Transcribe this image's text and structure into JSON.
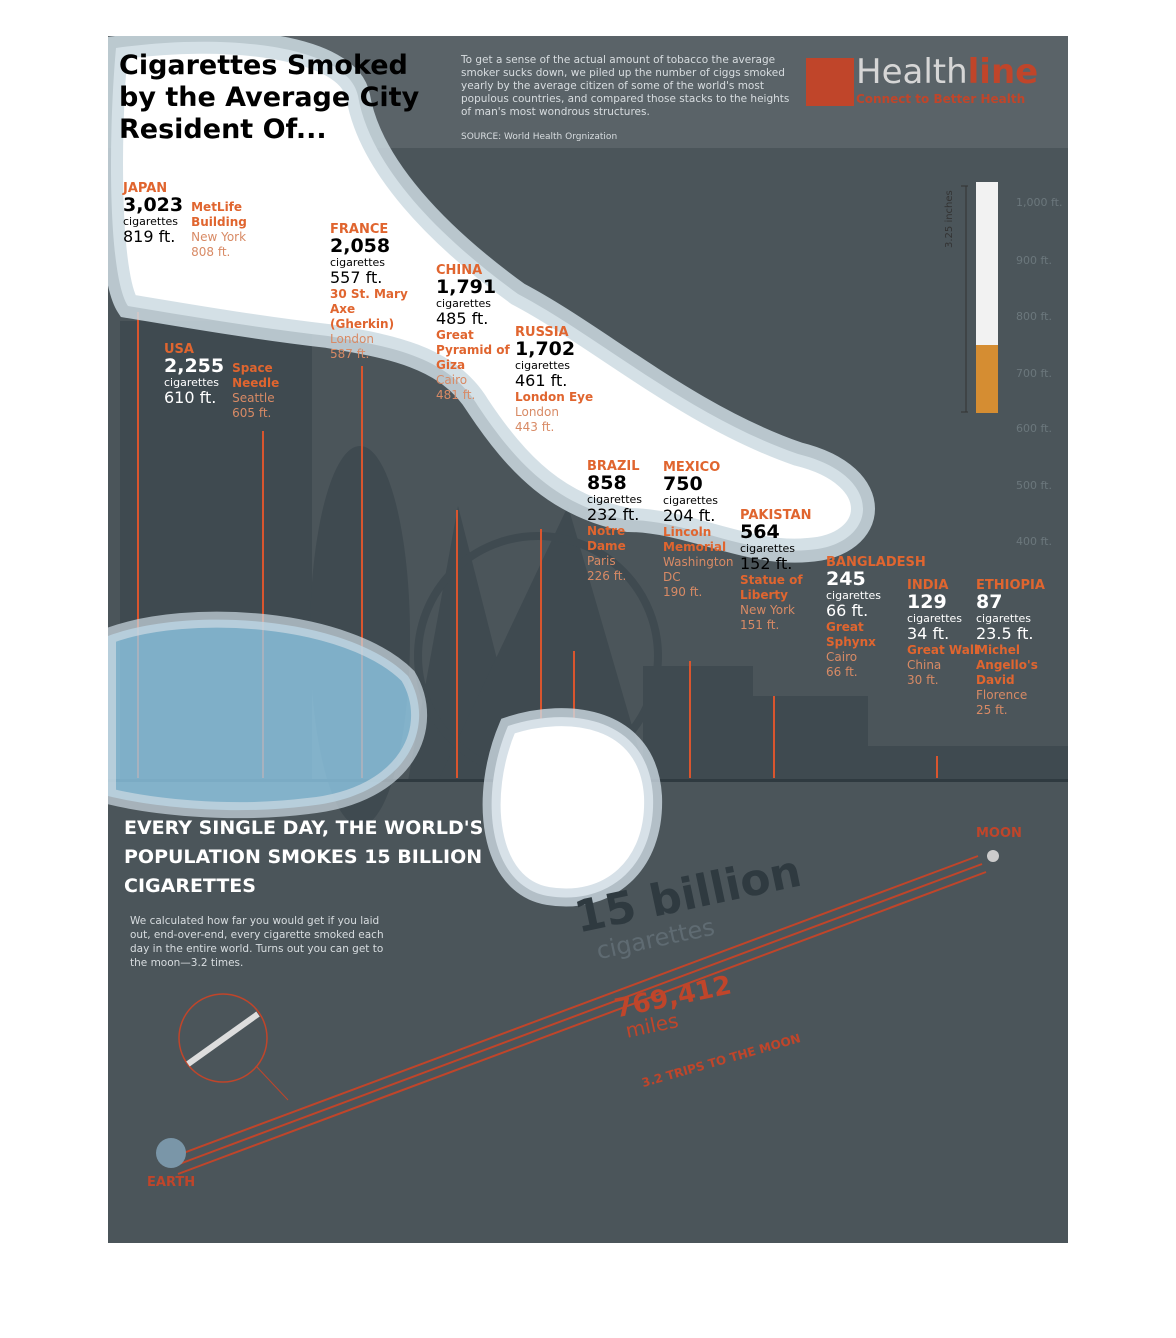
{
  "header": {
    "title": "Cigarettes Smoked by the Average City Resident Of...",
    "description": "To get a sense of the actual amount of tobacco the average smoker sucks down, we piled up the number of ciggs smoked yearly by the average citizen of some of the world's most populous countries, and compared those stacks to the heights of man's most wondrous structures.",
    "source": "SOURCE: World Health Orgnization",
    "logo": {
      "part1": "Health",
      "part2": "line",
      "tagline": "Connect to Better Health"
    }
  },
  "unit": "cigarettes",
  "countries": [
    {
      "country": "JAPAN",
      "cigarettes": "3,023",
      "height": "819 ft.",
      "landmark": "MetLife Building",
      "location": "New York",
      "landmark_height": "808 ft."
    },
    {
      "country": "FRANCE",
      "cigarettes": "2,058",
      "height": "557 ft.",
      "landmark": "30 St. Mary Axe (Gherkin)",
      "location": "London",
      "landmark_height": "587 ft."
    },
    {
      "country": "CHINA",
      "cigarettes": "1,791",
      "height": "485 ft.",
      "landmark": "Great Pyramid of Giza",
      "location": "Cairo",
      "landmark_height": "481 ft."
    },
    {
      "country": "RUSSIA",
      "cigarettes": "1,702",
      "height": "461 ft.",
      "landmark": "London Eye",
      "location": "London",
      "landmark_height": "443 ft."
    },
    {
      "country": "USA",
      "cigarettes": "2,255",
      "height": "610 ft.",
      "landmark": "Space Needle",
      "location": "Seattle",
      "landmark_height": "605 ft."
    },
    {
      "country": "BRAZIL",
      "cigarettes": "858",
      "height": "232 ft.",
      "landmark": "Notre Dame",
      "location": "Paris",
      "landmark_height": "226 ft."
    },
    {
      "country": "MEXICO",
      "cigarettes": "750",
      "height": "204 ft.",
      "landmark": "Lincoln Memorial",
      "location": "Washington DC",
      "landmark_height": "190 ft."
    },
    {
      "country": "PAKISTAN",
      "cigarettes": "564",
      "height": "152 ft.",
      "landmark": "Statue of Liberty",
      "location": "New York",
      "landmark_height": "151 ft."
    },
    {
      "country": "BANGLADESH",
      "cigarettes": "245",
      "height": "66 ft.",
      "landmark": "Great Sphynx",
      "location": "Cairo",
      "landmark_height": "66 ft."
    },
    {
      "country": "INDIA",
      "cigarettes": "129",
      "height": "34 ft.",
      "landmark": "Great Wall",
      "location": "China",
      "landmark_height": "30 ft."
    },
    {
      "country": "ETHIOPIA",
      "cigarettes": "87",
      "height": "23.5 ft.",
      "landmark": "Michel Angello's David",
      "location": "Florence",
      "landmark_height": "25 ft."
    }
  ],
  "scale": {
    "cigarette_label": "3.25 inches",
    "ticks": [
      "1,000 ft.",
      "900 ft.",
      "800 ft.",
      "700 ft.",
      "600 ft.",
      "500 ft.",
      "400 ft."
    ]
  },
  "bottom": {
    "headline": "EVERY SINGLE DAY, THE WORLD'S  POPULATION SMOKES 15 BILLION CIGARETTES",
    "text": "We calculated how far you would get if you laid out, end-over-end, every cigarette smoked each day in the entire world. Turns out you can get to the moon—3.2 times.",
    "big_number": "15 billion",
    "big_unit": "cigarettes",
    "miles": "769,412",
    "miles_unit": "miles",
    "trips": "3.2 TRIPS TO THE MOON",
    "moon": "MOON",
    "earth": "EARTH"
  }
}
